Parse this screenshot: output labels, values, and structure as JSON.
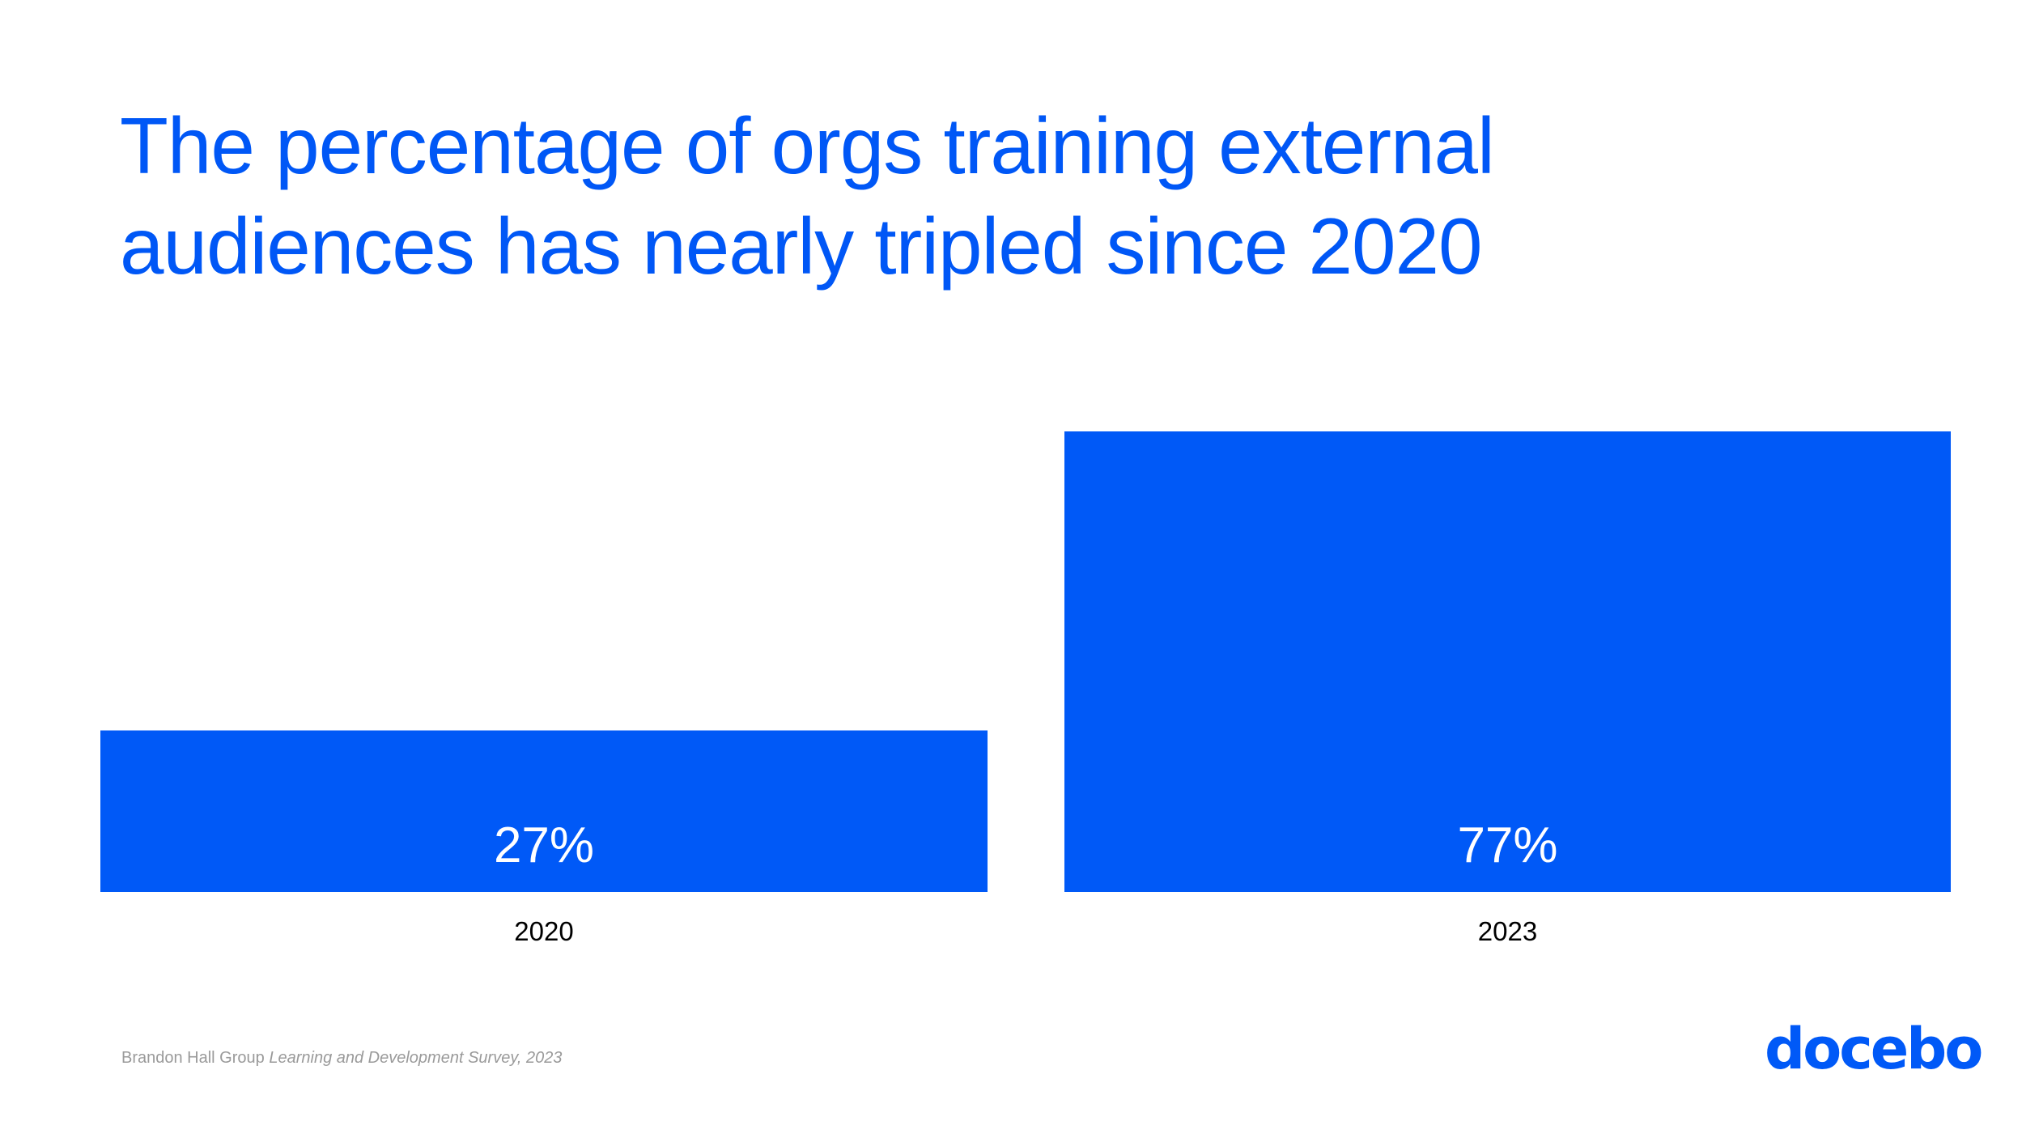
{
  "title": {
    "line1": "The percentage of orgs training external",
    "line2": "audiences has nearly tripled since 2020"
  },
  "chart_data": {
    "type": "bar",
    "title": "The percentage of orgs training external audiences has nearly tripled since 2020",
    "categories": [
      "2020",
      "2023"
    ],
    "values": [
      27,
      77
    ],
    "value_labels": [
      "27%",
      "77%"
    ],
    "xlabel": "",
    "ylabel": "",
    "ylim": [
      0,
      77
    ],
    "grid": false,
    "legend": "none",
    "bar_color": "#0059f7"
  },
  "source": {
    "prefix": "Brandon Hall Group",
    "italic": "Learning and Development Survey, 2023"
  },
  "logo": {
    "text": "docebo"
  },
  "colors": {
    "brand": "#0059f7",
    "title": "#0057f6"
  }
}
